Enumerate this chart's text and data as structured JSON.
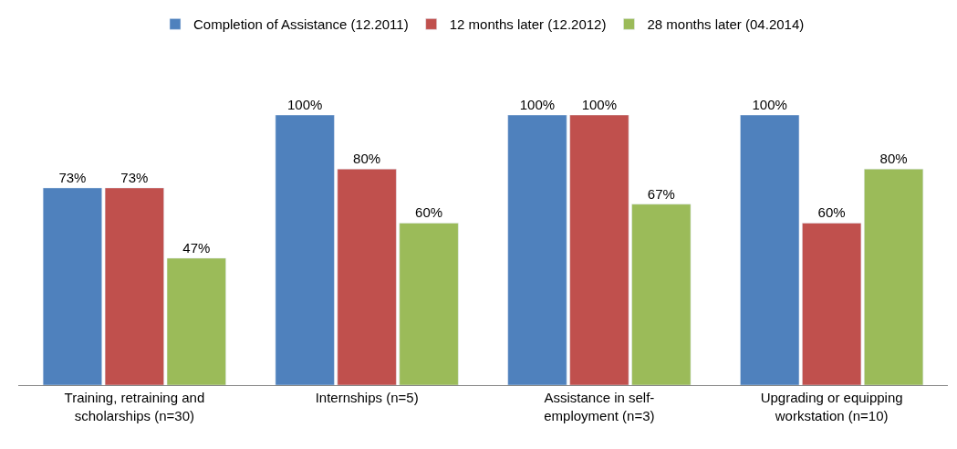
{
  "chart_data": {
    "type": "bar",
    "categories": [
      "Training, retraining and\nscholarships (n=30)",
      "Internships (n=5)",
      "Assistance in self-\nemployment (n=3)",
      "Upgrading or equipping\nworkstation (n=10)"
    ],
    "series": [
      {
        "name": "Completion of Assistance (12.2011)",
        "color": "#4f81bd",
        "values": [
          73,
          100,
          100,
          100
        ],
        "value_labels": [
          "73%",
          "100%",
          "100%",
          "100%"
        ]
      },
      {
        "name": "12 months later (12.2012)",
        "color": "#c0504d",
        "values": [
          73,
          80,
          100,
          60
        ],
        "value_labels": [
          "73%",
          "80%",
          "100%",
          "60%"
        ]
      },
      {
        "name": "28 months later (04.2014)",
        "color": "#9bbb59",
        "values": [
          47,
          60,
          67,
          80
        ],
        "value_labels": [
          "47%",
          "60%",
          "67%",
          "80%"
        ]
      }
    ],
    "legend": "top"
  }
}
